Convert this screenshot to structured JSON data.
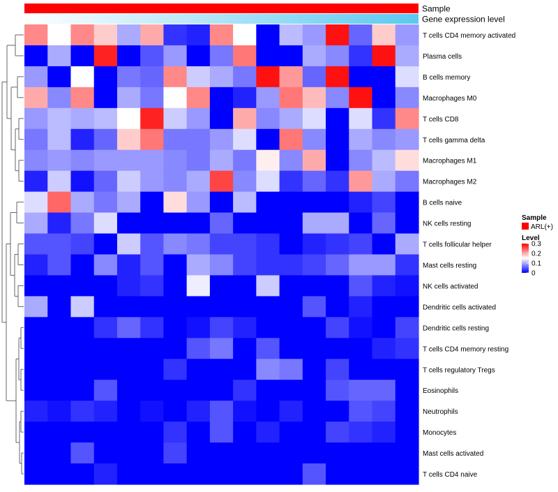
{
  "chart_data": {
    "type": "heatmap",
    "annotation_rows": [
      {
        "name": "Sample",
        "color": "#ff0000"
      },
      {
        "name": "Gene expression level",
        "gradient": [
          "#ffffff",
          "#5bc8f0"
        ]
      }
    ],
    "rows": [
      "T cells CD4 memory activated",
      "Plasma cells",
      "B cells memory",
      "Macrophages M0",
      "T cells CD8",
      "T cells gamma delta",
      "Macrophages M1",
      "Macrophages M2",
      "B cells naive",
      "NK cells resting",
      "T cells follicular helper",
      "Mast cells resting",
      "NK cells activated",
      "Dendritic cells activated",
      "Dendritic cells resting",
      "T cells CD4 memory resting",
      "T cells regulatory  Tregs",
      "Eosinophils",
      "Neutrophils",
      "Monocytes",
      "Mast cells activated",
      "T cells CD4 naive"
    ],
    "n_columns": 17,
    "values": [
      [
        0.22,
        0.15,
        0.22,
        0.18,
        0.1,
        0.2,
        0.03,
        0.02,
        0.22,
        0.15,
        0.0,
        0.11,
        0.09,
        0.29,
        0.06,
        0.18,
        0.09
      ],
      [
        0.0,
        0.1,
        0.0,
        0.28,
        0.0,
        0.05,
        0.09,
        0.0,
        0.07,
        0.23,
        0.0,
        0.0,
        0.1,
        0.08,
        0.03,
        0.29,
        0.1
      ],
      [
        0.09,
        0.0,
        0.15,
        0.0,
        0.07,
        0.06,
        0.22,
        0.12,
        0.1,
        0.07,
        0.29,
        0.21,
        0.06,
        0.29,
        0.0,
        0.0,
        0.13
      ],
      [
        0.2,
        0.08,
        0.22,
        0.0,
        0.1,
        0.07,
        0.15,
        0.22,
        0.0,
        0.02,
        0.09,
        0.23,
        0.19,
        0.08,
        0.29,
        0.0,
        0.08
      ],
      [
        0.09,
        0.11,
        0.1,
        0.11,
        0.15,
        0.28,
        0.12,
        0.09,
        0.0,
        0.2,
        0.08,
        0.1,
        0.13,
        0.0,
        0.13,
        0.03,
        0.22
      ],
      [
        0.07,
        0.11,
        0.02,
        0.06,
        0.18,
        0.23,
        0.07,
        0.07,
        0.09,
        0.13,
        0.0,
        0.23,
        0.08,
        0.0,
        0.1,
        0.08,
        0.09
      ],
      [
        0.08,
        0.09,
        0.08,
        0.09,
        0.09,
        0.09,
        0.08,
        0.07,
        0.1,
        0.07,
        0.16,
        0.08,
        0.2,
        0.0,
        0.08,
        0.11,
        0.17
      ],
      [
        0.02,
        0.12,
        0.01,
        0.06,
        0.12,
        0.09,
        0.08,
        0.1,
        0.26,
        0.08,
        0.13,
        0.03,
        0.06,
        0.03,
        0.21,
        0.1,
        0.07
      ],
      [
        0.13,
        0.24,
        0.1,
        0.07,
        0.1,
        0.0,
        0.17,
        0.09,
        0.0,
        0.11,
        0.0,
        0.0,
        0.0,
        0.0,
        0.02,
        0.04,
        0.0
      ],
      [
        0.1,
        0.02,
        0.07,
        0.13,
        0.0,
        0.0,
        0.0,
        0.0,
        0.06,
        0.0,
        0.0,
        0.0,
        0.1,
        0.1,
        0.0,
        0.06,
        0.0
      ],
      [
        0.05,
        0.05,
        0.04,
        0.0,
        0.12,
        0.05,
        0.08,
        0.07,
        0.04,
        0.04,
        0.03,
        0.0,
        0.02,
        0.03,
        0.04,
        0.0,
        0.1
      ],
      [
        0.02,
        0.05,
        0.0,
        0.08,
        0.02,
        0.05,
        0.0,
        0.1,
        0.08,
        0.04,
        0.03,
        0.03,
        0.04,
        0.06,
        0.09,
        0.09,
        0.03
      ],
      [
        0.0,
        0.0,
        0.0,
        0.0,
        0.02,
        0.03,
        0.0,
        0.14,
        0.0,
        0.0,
        0.12,
        0.0,
        0.0,
        0.0,
        0.05,
        0.02,
        0.01
      ],
      [
        0.1,
        0.0,
        0.12,
        0.0,
        0.0,
        0.0,
        0.0,
        0.0,
        0.0,
        0.0,
        0.0,
        0.0,
        0.05,
        0.0,
        0.02,
        0.0,
        0.0
      ],
      [
        0.0,
        0.0,
        0.0,
        0.03,
        0.06,
        0.03,
        0.0,
        0.01,
        0.04,
        0.02,
        0.0,
        0.0,
        0.0,
        0.04,
        0.01,
        0.0,
        0.04
      ],
      [
        0.0,
        0.0,
        0.0,
        0.0,
        0.0,
        0.0,
        0.0,
        0.05,
        0.07,
        0.0,
        0.05,
        0.0,
        0.0,
        0.0,
        0.0,
        0.02,
        0.03
      ],
      [
        0.0,
        0.0,
        0.0,
        0.0,
        0.0,
        0.0,
        0.03,
        0.0,
        0.0,
        0.0,
        0.08,
        0.07,
        0.0,
        0.04,
        0.0,
        0.0,
        0.0
      ],
      [
        0.0,
        0.0,
        0.0,
        0.05,
        0.0,
        0.0,
        0.0,
        0.0,
        0.0,
        0.03,
        0.0,
        0.0,
        0.0,
        0.05,
        0.06,
        0.06,
        0.0
      ],
      [
        0.02,
        0.01,
        0.03,
        0.02,
        0.0,
        0.01,
        0.0,
        0.02,
        0.05,
        0.01,
        0.0,
        0.02,
        0.0,
        0.0,
        0.05,
        0.04,
        0.0
      ],
      [
        0.0,
        0.0,
        0.0,
        0.0,
        0.0,
        0.0,
        0.03,
        0.0,
        0.05,
        0.0,
        0.02,
        0.0,
        0.0,
        0.04,
        0.03,
        0.02,
        0.0
      ],
      [
        0.0,
        0.0,
        0.05,
        0.0,
        0.0,
        0.0,
        0.04,
        0.0,
        0.0,
        0.0,
        0.0,
        0.0,
        0.0,
        0.0,
        0.0,
        0.0,
        0.0
      ],
      [
        0.0,
        0.0,
        0.0,
        0.02,
        0.0,
        0.0,
        0.0,
        0.0,
        0.0,
        0.0,
        0.0,
        0.0,
        0.05,
        0.0,
        0.0,
        0.0,
        0.0
      ]
    ],
    "color_scale": {
      "min": 0,
      "max": 0.3,
      "low": "#0000ff",
      "mid": "#ffffff",
      "high": "#ff0000",
      "mid_value": 0.15
    },
    "legend": {
      "position": "right",
      "sample": {
        "title": "Sample",
        "entry": "ARL(+)",
        "color": "#ff0000"
      },
      "level": {
        "title": "Level",
        "ticks": [
          "0.3",
          "0.2",
          "0.1",
          "0"
        ],
        "tick_values": [
          0.3,
          0.2,
          0.1,
          0
        ]
      }
    },
    "row_dendrogram": true
  }
}
